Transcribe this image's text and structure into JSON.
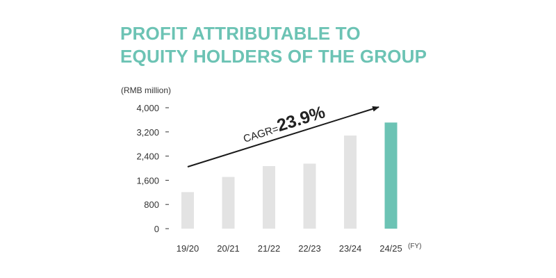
{
  "chart_data": {
    "type": "bar",
    "title": [
      "PROFIT ATTRIBUTABLE TO",
      "EQUITY HOLDERS OF THE GROUP"
    ],
    "ylabel": "(RMB million)",
    "x_suffix": "(FY)",
    "categories": [
      "19/20",
      "20/21",
      "21/22",
      "22/23",
      "23/24",
      "24/25"
    ],
    "values": [
      1210,
      1710,
      2070,
      2150,
      3080,
      3510
    ],
    "yticks": [
      0,
      800,
      1600,
      2400,
      3200,
      4000
    ],
    "ytick_labels": [
      "0",
      "800",
      "1,600",
      "2,400",
      "3,200",
      "4,000"
    ],
    "ylim": [
      0,
      4000
    ],
    "grid": false,
    "colors": {
      "default": "#e3e3e3",
      "highlight": "#6cc3b4",
      "title": "#6cc3b4"
    },
    "highlight_index": 5,
    "annotation": {
      "label": "CAGR=",
      "value": "23.9%"
    }
  }
}
